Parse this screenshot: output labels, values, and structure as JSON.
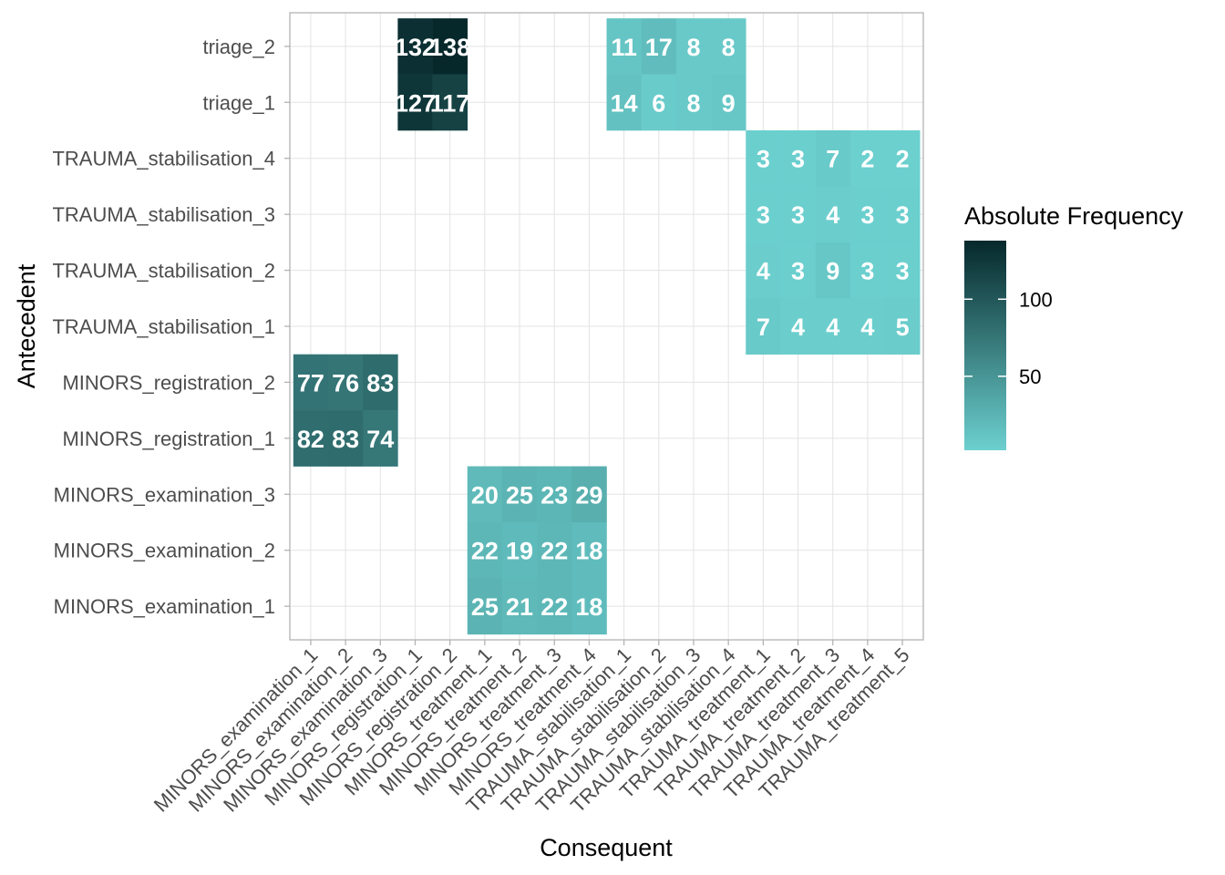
{
  "chart_data": {
    "type": "heatmap",
    "xlabel": "Consequent",
    "ylabel": "Antecedent",
    "x_categories": [
      "MINORS_examination_1",
      "MINORS_examination_2",
      "MINORS_examination_3",
      "MINORS_registration_1",
      "MINORS_registration_2",
      "MINORS_treatment_1",
      "MINORS_treatment_2",
      "MINORS_treatment_3",
      "MINORS_treatment_4",
      "TRAUMA_stabilisation_1",
      "TRAUMA_stabilisation_2",
      "TRAUMA_stabilisation_3",
      "TRAUMA_stabilisation_4",
      "TRAUMA_treatment_1",
      "TRAUMA_treatment_2",
      "TRAUMA_treatment_3",
      "TRAUMA_treatment_4",
      "TRAUMA_treatment_5"
    ],
    "y_categories": [
      "MINORS_examination_1",
      "MINORS_examination_2",
      "MINORS_examination_3",
      "MINORS_registration_1",
      "MINORS_registration_2",
      "TRAUMA_stabilisation_1",
      "TRAUMA_stabilisation_2",
      "TRAUMA_stabilisation_3",
      "TRAUMA_stabilisation_4",
      "triage_1",
      "triage_2"
    ],
    "cells": [
      {
        "y": "triage_2",
        "x": "MINORS_registration_1",
        "value": 132
      },
      {
        "y": "triage_2",
        "x": "MINORS_registration_2",
        "value": 138
      },
      {
        "y": "triage_2",
        "x": "TRAUMA_stabilisation_1",
        "value": 11
      },
      {
        "y": "triage_2",
        "x": "TRAUMA_stabilisation_2",
        "value": 17
      },
      {
        "y": "triage_2",
        "x": "TRAUMA_stabilisation_3",
        "value": 8
      },
      {
        "y": "triage_2",
        "x": "TRAUMA_stabilisation_4",
        "value": 8
      },
      {
        "y": "triage_1",
        "x": "MINORS_registration_1",
        "value": 127
      },
      {
        "y": "triage_1",
        "x": "MINORS_registration_2",
        "value": 117
      },
      {
        "y": "triage_1",
        "x": "TRAUMA_stabilisation_1",
        "value": 14
      },
      {
        "y": "triage_1",
        "x": "TRAUMA_stabilisation_2",
        "value": 6
      },
      {
        "y": "triage_1",
        "x": "TRAUMA_stabilisation_3",
        "value": 8
      },
      {
        "y": "triage_1",
        "x": "TRAUMA_stabilisation_4",
        "value": 9
      },
      {
        "y": "TRAUMA_stabilisation_4",
        "x": "TRAUMA_treatment_1",
        "value": 3
      },
      {
        "y": "TRAUMA_stabilisation_4",
        "x": "TRAUMA_treatment_2",
        "value": 3
      },
      {
        "y": "TRAUMA_stabilisation_4",
        "x": "TRAUMA_treatment_3",
        "value": 7
      },
      {
        "y": "TRAUMA_stabilisation_4",
        "x": "TRAUMA_treatment_4",
        "value": 2
      },
      {
        "y": "TRAUMA_stabilisation_4",
        "x": "TRAUMA_treatment_5",
        "value": 2
      },
      {
        "y": "TRAUMA_stabilisation_3",
        "x": "TRAUMA_treatment_1",
        "value": 3
      },
      {
        "y": "TRAUMA_stabilisation_3",
        "x": "TRAUMA_treatment_2",
        "value": 3
      },
      {
        "y": "TRAUMA_stabilisation_3",
        "x": "TRAUMA_treatment_3",
        "value": 4
      },
      {
        "y": "TRAUMA_stabilisation_3",
        "x": "TRAUMA_treatment_4",
        "value": 3
      },
      {
        "y": "TRAUMA_stabilisation_3",
        "x": "TRAUMA_treatment_5",
        "value": 3
      },
      {
        "y": "TRAUMA_stabilisation_2",
        "x": "TRAUMA_treatment_1",
        "value": 4
      },
      {
        "y": "TRAUMA_stabilisation_2",
        "x": "TRAUMA_treatment_2",
        "value": 3
      },
      {
        "y": "TRAUMA_stabilisation_2",
        "x": "TRAUMA_treatment_3",
        "value": 9
      },
      {
        "y": "TRAUMA_stabilisation_2",
        "x": "TRAUMA_treatment_4",
        "value": 3
      },
      {
        "y": "TRAUMA_stabilisation_2",
        "x": "TRAUMA_treatment_5",
        "value": 3
      },
      {
        "y": "TRAUMA_stabilisation_1",
        "x": "TRAUMA_treatment_1",
        "value": 7
      },
      {
        "y": "TRAUMA_stabilisation_1",
        "x": "TRAUMA_treatment_2",
        "value": 4
      },
      {
        "y": "TRAUMA_stabilisation_1",
        "x": "TRAUMA_treatment_3",
        "value": 4
      },
      {
        "y": "TRAUMA_stabilisation_1",
        "x": "TRAUMA_treatment_4",
        "value": 4
      },
      {
        "y": "TRAUMA_stabilisation_1",
        "x": "TRAUMA_treatment_5",
        "value": 5
      },
      {
        "y": "MINORS_registration_2",
        "x": "MINORS_examination_1",
        "value": 77
      },
      {
        "y": "MINORS_registration_2",
        "x": "MINORS_examination_2",
        "value": 76
      },
      {
        "y": "MINORS_registration_2",
        "x": "MINORS_examination_3",
        "value": 83
      },
      {
        "y": "MINORS_registration_1",
        "x": "MINORS_examination_1",
        "value": 82
      },
      {
        "y": "MINORS_registration_1",
        "x": "MINORS_examination_2",
        "value": 83
      },
      {
        "y": "MINORS_registration_1",
        "x": "MINORS_examination_3",
        "value": 74
      },
      {
        "y": "MINORS_examination_3",
        "x": "MINORS_treatment_1",
        "value": 20
      },
      {
        "y": "MINORS_examination_3",
        "x": "MINORS_treatment_2",
        "value": 25
      },
      {
        "y": "MINORS_examination_3",
        "x": "MINORS_treatment_3",
        "value": 23
      },
      {
        "y": "MINORS_examination_3",
        "x": "MINORS_treatment_4",
        "value": 29
      },
      {
        "y": "MINORS_examination_2",
        "x": "MINORS_treatment_1",
        "value": 22
      },
      {
        "y": "MINORS_examination_2",
        "x": "MINORS_treatment_2",
        "value": 19
      },
      {
        "y": "MINORS_examination_2",
        "x": "MINORS_treatment_3",
        "value": 22
      },
      {
        "y": "MINORS_examination_2",
        "x": "MINORS_treatment_4",
        "value": 18
      },
      {
        "y": "MINORS_examination_1",
        "x": "MINORS_treatment_1",
        "value": 25
      },
      {
        "y": "MINORS_examination_1",
        "x": "MINORS_treatment_2",
        "value": 21
      },
      {
        "y": "MINORS_examination_1",
        "x": "MINORS_treatment_3",
        "value": 22
      },
      {
        "y": "MINORS_examination_1",
        "x": "MINORS_treatment_4",
        "value": 18
      }
    ],
    "legend": {
      "title": "Absolute Frequency",
      "placement": "right",
      "ticks": [
        50,
        100
      ],
      "range": [
        2,
        138
      ],
      "low_color": "#6cd0cf",
      "high_color": "#06282b"
    },
    "grid": true
  }
}
